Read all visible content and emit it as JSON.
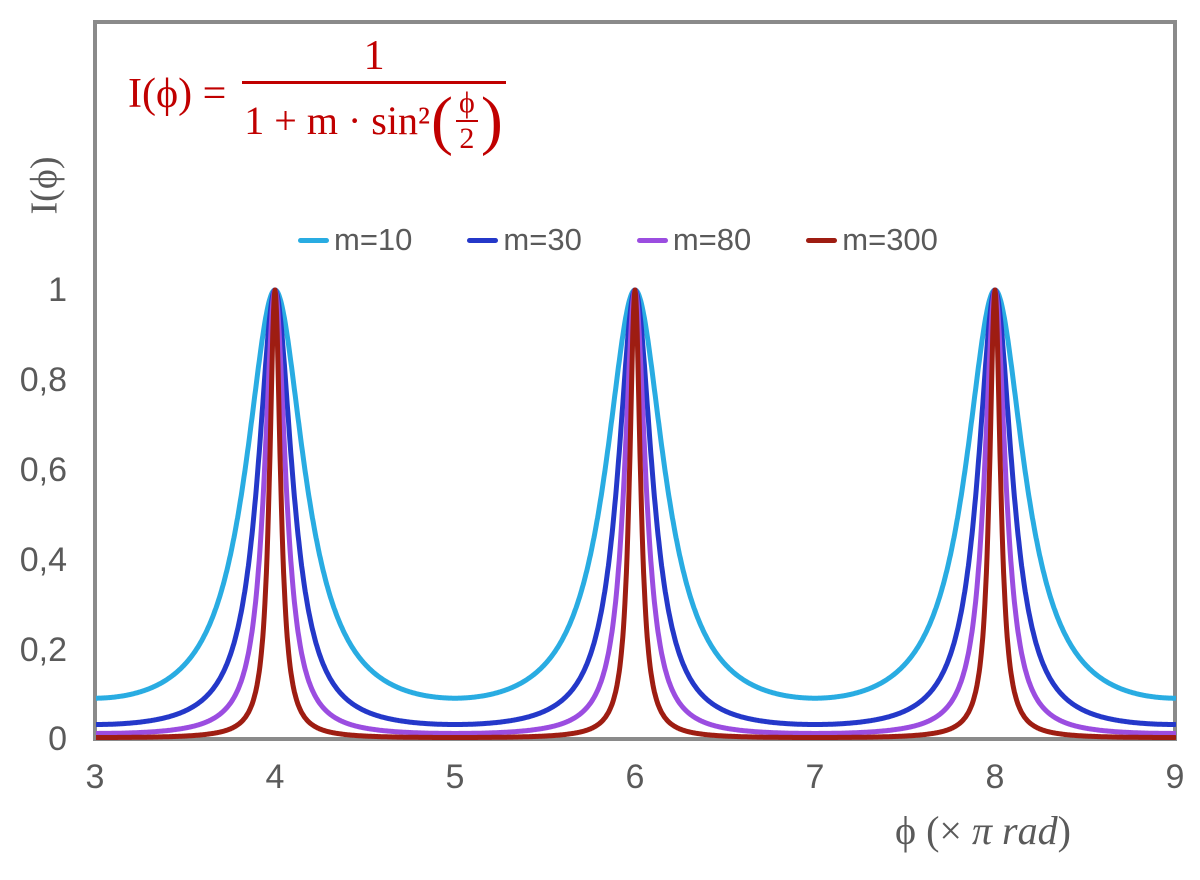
{
  "page": {
    "background": "#FFFFFF",
    "text_color": "#5A5A5A"
  },
  "frame": {
    "border_color": "#8A8A8A"
  },
  "formula": {
    "color": "#C00000",
    "lhs": "I(ϕ) =",
    "numerator": "1",
    "denominator_prefix": "1 + m · sin²",
    "open_paren": "(",
    "inner_numerator": "ϕ",
    "inner_denominator": "2",
    "close_paren": ")"
  },
  "legend": {
    "items": [
      {
        "label": "m=10",
        "color": "#29ACE2"
      },
      {
        "label": "m=30",
        "color": "#2438C9"
      },
      {
        "label": "m=80",
        "color": "#9B4DE0"
      },
      {
        "label": "m=300",
        "color": "#9E1D12"
      }
    ]
  },
  "axes": {
    "y_title": "I(ϕ)",
    "x_title_phi": "ϕ",
    "x_title_pre": "  (× ",
    "x_title_italic": "π rad",
    "x_title_post": ")",
    "y_ticks": [
      "1",
      "0,8",
      "0,6",
      "0,4",
      "0,2",
      "0"
    ],
    "x_ticks": [
      "3",
      "4",
      "5",
      "6",
      "7",
      "8",
      "9"
    ]
  },
  "chart_data": {
    "type": "line",
    "title": "",
    "xlabel": "ϕ (× π rad)",
    "ylabel": "I(ϕ)",
    "x_range": [
      3,
      9
    ],
    "y_range": [
      0,
      1
    ],
    "x_tick_values": [
      3,
      4,
      5,
      6,
      7,
      8,
      9
    ],
    "y_tick_values": [
      0,
      0.2,
      0.4,
      0.6,
      0.8,
      1
    ],
    "grid": false,
    "legend_position": "top-center-inside",
    "function": "I(phi) = 1 / (1 + m * sin^2(phi/2)); x axis is phi in units of pi rad, so I(x) = 1 / (1 + m * sin^2(x*pi/2))",
    "peaks_x": [
      4,
      6,
      8
    ],
    "peak_value": 1,
    "series": [
      {
        "name": "m=10",
        "m": 10,
        "color": "#29ACE2",
        "min_value": 0.0909,
        "stroke_width": 5
      },
      {
        "name": "m=30",
        "m": 30,
        "color": "#2438C9",
        "min_value": 0.0323,
        "stroke_width": 5
      },
      {
        "name": "m=80",
        "m": 80,
        "color": "#9B4DE0",
        "min_value": 0.0123,
        "stroke_width": 5
      },
      {
        "name": "m=300",
        "m": 300,
        "color": "#9E1D12",
        "min_value": 0.0033,
        "stroke_width": 5
      }
    ]
  }
}
